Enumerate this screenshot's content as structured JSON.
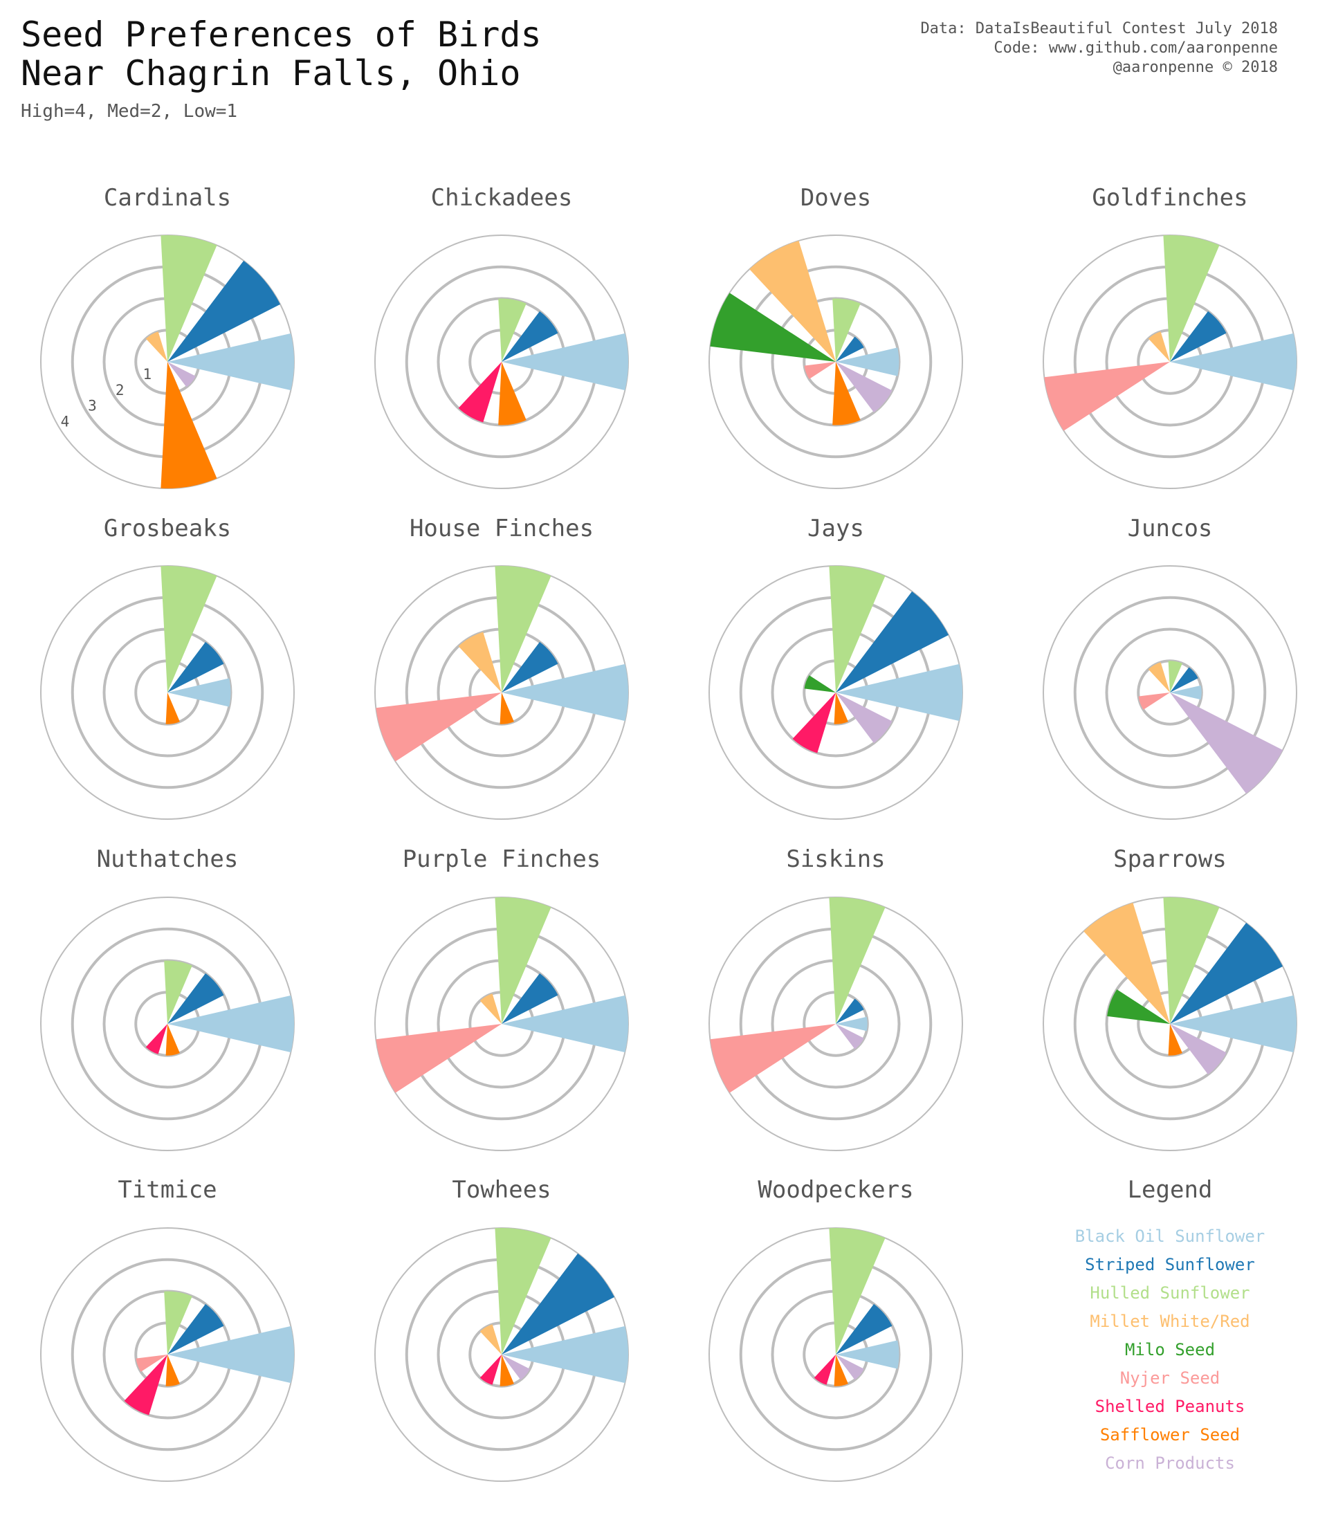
{
  "header": {
    "title": "Seed Preferences of Birds\nNear Chagrin Falls, Ohio",
    "subtitle": "High=4, Med=2, Low=1",
    "credits": [
      "Data: DataIsBeautiful Contest July 2018",
      "Code: www.github.com/aaronpenne",
      "@aaronpenne © 2018"
    ]
  },
  "chart_data": {
    "type": "polar-bar",
    "title": "Seed Preferences of Birds Near Chagrin Falls, Ohio",
    "subtitle": "High=4, Med=2, Low=1",
    "rlim": [
      0,
      4
    ],
    "ring_labels": [
      "1",
      "2",
      "3",
      "4"
    ],
    "seeds": [
      {
        "name": "Black Oil Sunflower",
        "color": "#a6cee3",
        "angle_deg": 0
      },
      {
        "name": "Striped Sunflower",
        "color": "#1f78b4",
        "angle_deg": 40
      },
      {
        "name": "Hulled Sunflower",
        "color": "#b2df8a",
        "angle_deg": 80
      },
      {
        "name": "Millet White/Red",
        "color": "#fdbf6f",
        "angle_deg": 120
      },
      {
        "name": "Milo Seed",
        "color": "#33a02c",
        "angle_deg": 160
      },
      {
        "name": "Nyjer Seed",
        "color": "#fb9a99",
        "angle_deg": 200
      },
      {
        "name": "Shelled Peanuts",
        "color": "#ff1a66",
        "angle_deg": 240
      },
      {
        "name": "Safflower Seed",
        "color": "#ff7f00",
        "angle_deg": 280
      },
      {
        "name": "Corn Products",
        "color": "#cab2d6",
        "angle_deg": 320
      }
    ],
    "birds": [
      {
        "name": "Cardinals",
        "values": [
          4,
          4,
          4,
          1,
          0,
          0,
          0,
          4,
          1
        ]
      },
      {
        "name": "Chickadees",
        "values": [
          4,
          2,
          2,
          0,
          0,
          0,
          2,
          2,
          0
        ]
      },
      {
        "name": "Doves",
        "values": [
          2,
          1,
          2,
          4,
          4,
          1,
          0,
          2,
          2
        ]
      },
      {
        "name": "Goldfinches",
        "values": [
          4,
          2,
          4,
          1,
          0,
          4,
          0,
          0,
          0
        ]
      },
      {
        "name": "Grosbeaks",
        "values": [
          2,
          2,
          4,
          0,
          0,
          0,
          0,
          1,
          0
        ]
      },
      {
        "name": "House Finches",
        "values": [
          4,
          2,
          4,
          2,
          0,
          4,
          0,
          1,
          0
        ]
      },
      {
        "name": "Jays",
        "values": [
          4,
          4,
          4,
          0,
          1,
          0,
          2,
          1,
          2
        ]
      },
      {
        "name": "Juncos",
        "values": [
          1,
          1,
          1,
          1,
          0,
          1,
          0,
          0,
          4
        ]
      },
      {
        "name": "Nuthatches",
        "values": [
          4,
          2,
          2,
          0,
          0,
          0,
          1,
          1,
          0
        ]
      },
      {
        "name": "Purple Finches",
        "values": [
          4,
          2,
          4,
          1,
          0,
          4,
          0,
          0,
          0
        ]
      },
      {
        "name": "Siskins",
        "values": [
          1,
          1,
          4,
          0,
          0,
          4,
          0,
          0,
          1
        ]
      },
      {
        "name": "Sparrows",
        "values": [
          4,
          4,
          4,
          4,
          2,
          0,
          0,
          1,
          2
        ]
      },
      {
        "name": "Titmice",
        "values": [
          4,
          2,
          2,
          0,
          0,
          1,
          2,
          1,
          0
        ]
      },
      {
        "name": "Towhees",
        "values": [
          4,
          4,
          4,
          1,
          0,
          0,
          1,
          1,
          1
        ]
      },
      {
        "name": "Woodpeckers",
        "values": [
          2,
          2,
          4,
          0,
          0,
          0,
          1,
          1,
          1
        ]
      }
    ]
  },
  "legend": {
    "title": "Legend"
  }
}
